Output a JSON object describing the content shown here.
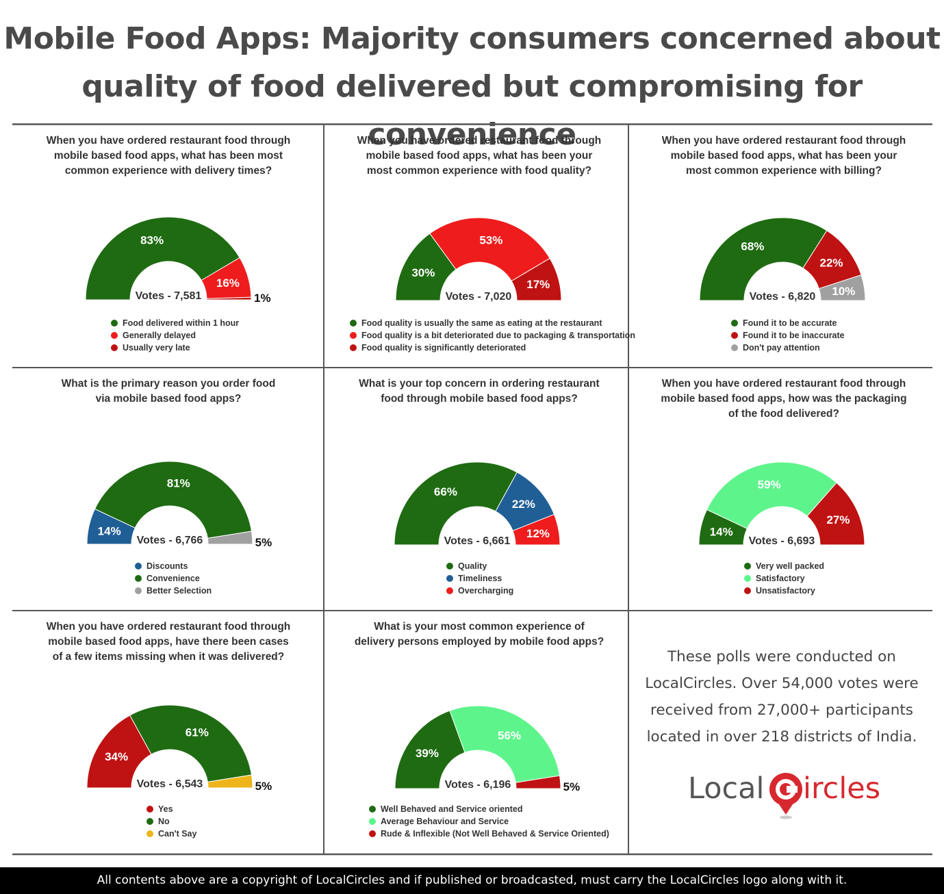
{
  "title_line1": "Mobile Food Apps: Majority consumers concerned about",
  "title_line2": "quality of food delivered but compromising for convenience",
  "note_lines": [
    "These polls were conducted on",
    "LocalCircles. Over 54,000 votes were",
    "received from 27,000+ participants",
    "located in over 218 districts of India."
  ],
  "logo": {
    "text_left": "Local",
    "text_c": "C",
    "text_right": "ircles",
    "red": "#d7282f",
    "grey": "#555555"
  },
  "footer": "All contents above are a copyright of LocalCircles and if published or broadcasted, must carry the LocalCircles logo along with it.",
  "colors": {
    "dark_green": "#1f6b12",
    "red": "#ee1c1c",
    "dark_red": "#bf1212",
    "grey": "#a0a0a0",
    "blue": "#205e96",
    "light_green": "#5ef48c",
    "yellow": "#edb51b",
    "grid": "#555555"
  },
  "chart_data": [
    {
      "type": "pie",
      "shape": "semi-donut",
      "question": [
        "When you have ordered restaurant food through",
        "mobile based food apps, what has been most",
        "common experience with delivery times?"
      ],
      "center_label": "Votes - 7,581",
      "slices": [
        {
          "label": "Food delivered within 1 hour",
          "value": 83,
          "display": "83%",
          "color": "#1f6b12"
        },
        {
          "label": "Generally delayed",
          "value": 16,
          "display": "16%",
          "color": "#ee1c1c"
        },
        {
          "label": "Usually very late",
          "value": 1,
          "display": "1%",
          "color": "#bf1212"
        }
      ]
    },
    {
      "type": "pie",
      "shape": "semi-donut",
      "question": [
        "When you have ordered restaurant food through",
        "mobile based food apps, what has been your",
        "most common experience with food quality?"
      ],
      "center_label": "Votes - 7,020",
      "slices": [
        {
          "label": "Food quality is usually the same as eating at the restaurant",
          "value": 30,
          "display": "30%",
          "color": "#1f6b12"
        },
        {
          "label": "Food quality is a bit deteriorated due to packaging & transportation",
          "value": 53,
          "display": "53%",
          "color": "#ee1c1c"
        },
        {
          "label": "Food quality is significantly deteriorated",
          "value": 17,
          "display": "17%",
          "color": "#bf1212"
        }
      ]
    },
    {
      "type": "pie",
      "shape": "semi-donut",
      "question": [
        "When you have ordered restaurant food through",
        "mobile based food apps, what has been your",
        "most common experience with billing?"
      ],
      "center_label": "Votes - 6,820",
      "slices": [
        {
          "label": "Found it to be accurate",
          "value": 68,
          "display": "68%",
          "color": "#1f6b12"
        },
        {
          "label": "Found it to be inaccurate",
          "value": 22,
          "display": "22%",
          "color": "#bf1212"
        },
        {
          "label": "Don't pay attention",
          "value": 10,
          "display": "10%",
          "color": "#a0a0a0"
        }
      ]
    },
    {
      "type": "pie",
      "shape": "semi-donut",
      "question": [
        "What is the primary reason you order food",
        "via mobile based food apps?"
      ],
      "center_label": "Votes - 6,766",
      "slices": [
        {
          "label": "Discounts",
          "value": 14,
          "display": "14%",
          "color": "#205e96"
        },
        {
          "label": "Convenience",
          "value": 81,
          "display": "81%",
          "color": "#1f6b12"
        },
        {
          "label": "Better Selection",
          "value": 5,
          "display": "5%",
          "color": "#a0a0a0"
        }
      ]
    },
    {
      "type": "pie",
      "shape": "semi-donut",
      "question": [
        "What is your top concern in ordering restaurant",
        "food through mobile based food apps?"
      ],
      "center_label": "Votes - 6,661",
      "slices": [
        {
          "label": "Quality",
          "value": 66,
          "display": "66%",
          "color": "#1f6b12"
        },
        {
          "label": "Timeliness",
          "value": 22,
          "display": "22%",
          "color": "#205e96"
        },
        {
          "label": "Overcharging",
          "value": 12,
          "display": "12%",
          "color": "#ee1c1c"
        }
      ]
    },
    {
      "type": "pie",
      "shape": "semi-donut",
      "question": [
        "When you have ordered restaurant food through",
        "mobile based food apps, how was the packaging",
        "of the food delivered?"
      ],
      "center_label": "Votes - 6,693",
      "slices": [
        {
          "label": "Very well packed",
          "value": 14,
          "display": "14%",
          "color": "#1f6b12"
        },
        {
          "label": "Satisfactory",
          "value": 59,
          "display": "59%",
          "color": "#5ef48c"
        },
        {
          "label": "Unsatisfactory",
          "value": 27,
          "display": "27%",
          "color": "#bf1212"
        }
      ]
    },
    {
      "type": "pie",
      "shape": "semi-donut",
      "question": [
        "When you have ordered restaurant food through",
        "mobile based food apps, have there been cases",
        "of a few items missing when it was delivered?"
      ],
      "center_label": "Votes - 6,543",
      "slices": [
        {
          "label": "Yes",
          "value": 34,
          "display": "34%",
          "color": "#bf1212"
        },
        {
          "label": "No",
          "value": 61,
          "display": "61%",
          "color": "#1f6b12"
        },
        {
          "label": "Can't Say",
          "value": 5,
          "display": "5%",
          "color": "#edb51b"
        }
      ]
    },
    {
      "type": "pie",
      "shape": "semi-donut",
      "question": [
        "What is your most common experience of",
        "delivery persons employed by mobile food apps?"
      ],
      "center_label": "Votes - 6,196",
      "slices": [
        {
          "label": "Well Behaved and Service oriented",
          "value": 39,
          "display": "39%",
          "color": "#1f6b12"
        },
        {
          "label": "Average Behaviour and Service",
          "value": 56,
          "display": "56%",
          "color": "#5ef48c"
        },
        {
          "label": "Rude & Inflexible (Not Well Behaved & Service Oriented)",
          "value": 5,
          "display": "5%",
          "color": "#bf1212"
        }
      ]
    }
  ]
}
